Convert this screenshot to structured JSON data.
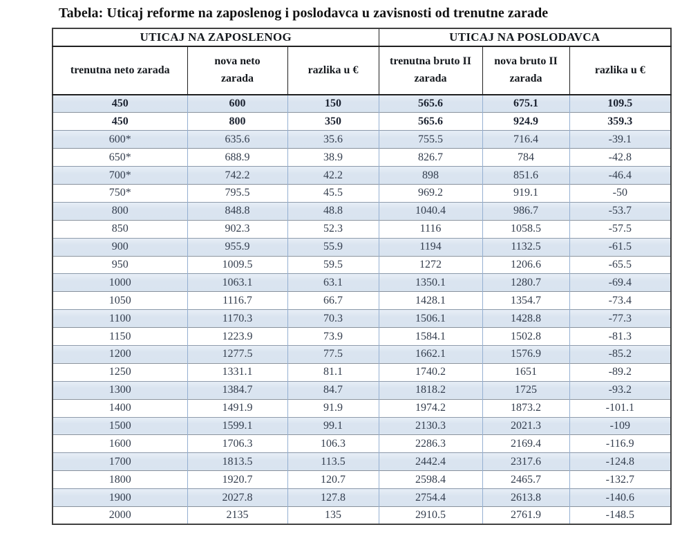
{
  "title": "Tabela: Uticaj reforme na zaposlenog i poslodavca u zavisnosti od trenutne zarade",
  "table": {
    "groups": [
      {
        "label": "UTICAJ NA ZAPOSLENOG"
      },
      {
        "label": "UTICAJ NA POSLODAVCA"
      }
    ],
    "columns": [
      "trenutna neto zarada",
      "nova neto zarada",
      "razlika u €",
      "trenutna bruto II zarada",
      "nova bruto II zarada",
      "razlika u €"
    ],
    "rows": [
      {
        "cells": [
          "450",
          "600",
          "150",
          "565.6",
          "675.1",
          "109.5"
        ],
        "bold": true,
        "shaded": true
      },
      {
        "cells": [
          "450",
          "800",
          "350",
          "565.6",
          "924.9",
          "359.3"
        ],
        "bold": true,
        "shaded": false
      },
      {
        "cells": [
          "600*",
          "635.6",
          "35.6",
          "755.5",
          "716.4",
          "-39.1"
        ],
        "bold": false,
        "shaded": true
      },
      {
        "cells": [
          "650*",
          "688.9",
          "38.9",
          "826.7",
          "784",
          "-42.8"
        ],
        "bold": false,
        "shaded": false
      },
      {
        "cells": [
          "700*",
          "742.2",
          "42.2",
          "898",
          "851.6",
          "-46.4"
        ],
        "bold": false,
        "shaded": true
      },
      {
        "cells": [
          "750*",
          "795.5",
          "45.5",
          "969.2",
          "919.1",
          "-50"
        ],
        "bold": false,
        "shaded": false
      },
      {
        "cells": [
          "800",
          "848.8",
          "48.8",
          "1040.4",
          "986.7",
          "-53.7"
        ],
        "bold": false,
        "shaded": true
      },
      {
        "cells": [
          "850",
          "902.3",
          "52.3",
          "1116",
          "1058.5",
          "-57.5"
        ],
        "bold": false,
        "shaded": false
      },
      {
        "cells": [
          "900",
          "955.9",
          "55.9",
          "1194",
          "1132.5",
          "-61.5"
        ],
        "bold": false,
        "shaded": true
      },
      {
        "cells": [
          "950",
          "1009.5",
          "59.5",
          "1272",
          "1206.6",
          "-65.5"
        ],
        "bold": false,
        "shaded": false
      },
      {
        "cells": [
          "1000",
          "1063.1",
          "63.1",
          "1350.1",
          "1280.7",
          "-69.4"
        ],
        "bold": false,
        "shaded": true
      },
      {
        "cells": [
          "1050",
          "1116.7",
          "66.7",
          "1428.1",
          "1354.7",
          "-73.4"
        ],
        "bold": false,
        "shaded": false
      },
      {
        "cells": [
          "1100",
          "1170.3",
          "70.3",
          "1506.1",
          "1428.8",
          "-77.3"
        ],
        "bold": false,
        "shaded": true
      },
      {
        "cells": [
          "1150",
          "1223.9",
          "73.9",
          "1584.1",
          "1502.8",
          "-81.3"
        ],
        "bold": false,
        "shaded": false
      },
      {
        "cells": [
          "1200",
          "1277.5",
          "77.5",
          "1662.1",
          "1576.9",
          "-85.2"
        ],
        "bold": false,
        "shaded": true
      },
      {
        "cells": [
          "1250",
          "1331.1",
          "81.1",
          "1740.2",
          "1651",
          "-89.2"
        ],
        "bold": false,
        "shaded": false
      },
      {
        "cells": [
          "1300",
          "1384.7",
          "84.7",
          "1818.2",
          "1725",
          "-93.2"
        ],
        "bold": false,
        "shaded": true
      },
      {
        "cells": [
          "1400",
          "1491.9",
          "91.9",
          "1974.2",
          "1873.2",
          "-101.1"
        ],
        "bold": false,
        "shaded": false
      },
      {
        "cells": [
          "1500",
          "1599.1",
          "99.1",
          "2130.3",
          "2021.3",
          "-109"
        ],
        "bold": false,
        "shaded": true
      },
      {
        "cells": [
          "1600",
          "1706.3",
          "106.3",
          "2286.3",
          "2169.4",
          "-116.9"
        ],
        "bold": false,
        "shaded": false
      },
      {
        "cells": [
          "1700",
          "1813.5",
          "113.5",
          "2442.4",
          "2317.6",
          "-124.8"
        ],
        "bold": false,
        "shaded": true
      },
      {
        "cells": [
          "1800",
          "1920.7",
          "120.7",
          "2598.4",
          "2465.7",
          "-132.7"
        ],
        "bold": false,
        "shaded": false
      },
      {
        "cells": [
          "1900",
          "2027.8",
          "127.8",
          "2754.4",
          "2613.8",
          "-140.6"
        ],
        "bold": false,
        "shaded": true
      },
      {
        "cells": [
          "2000",
          "2135",
          "135",
          "2910.5",
          "2761.9",
          "-148.5"
        ],
        "bold": false,
        "shaded": false
      }
    ]
  },
  "colors": {
    "shaded_row": "#dbe5f1",
    "vertical_border": "#94afd1",
    "horizontal_border": "#87909b",
    "outer_border": "#3f3f3f",
    "header_border": "#1f1f1f",
    "text": "#333d4d",
    "bold_text": "#1b2230"
  }
}
